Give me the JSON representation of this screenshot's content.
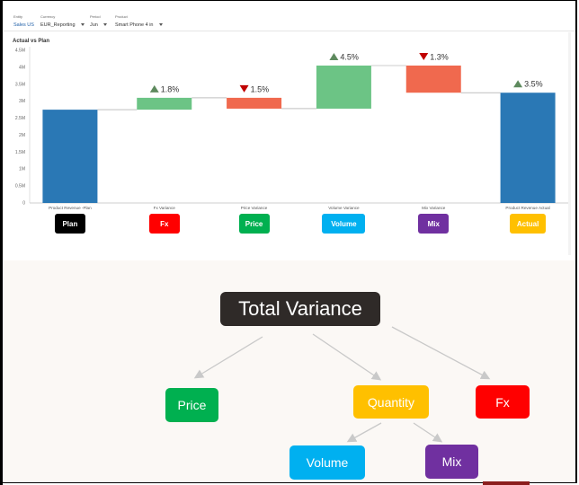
{
  "filters": [
    {
      "label": "Entity",
      "value": "Sales US",
      "has_caret": false
    },
    {
      "label": "Currency",
      "value": "EUR_Reporting",
      "has_caret": true
    },
    {
      "label": "Period",
      "value": "Jun",
      "has_caret": true
    },
    {
      "label": "Product",
      "value": "Smart Phone 4 in",
      "has_caret": true
    }
  ],
  "chart": {
    "title": "Actual vs Plan"
  },
  "chart_data": {
    "type": "waterfall",
    "title": "Actual vs Plan",
    "y_ticks": [
      "0",
      "0.5M",
      "1M",
      "1.5M",
      "2M",
      "2.5M",
      "3M",
      "3.5M",
      "4M",
      "4.5M"
    ],
    "ylim": [
      0,
      4500000
    ],
    "categories": [
      "Product Revenue -Plan",
      "Fx Variance",
      "Price Variance",
      "Volume Variance",
      "Mix Variance",
      "Product Revenue Actual"
    ],
    "bars": [
      {
        "kind": "total",
        "start": 0,
        "end": 2750000,
        "color": "#2a78b5",
        "pct": ""
      },
      {
        "kind": "up",
        "start": 2750000,
        "end": 3100000,
        "color": "#6cc485",
        "pct": "1.8%"
      },
      {
        "kind": "down",
        "start": 3100000,
        "end": 2780000,
        "color": "#f0694e",
        "pct": "1.5%"
      },
      {
        "kind": "up",
        "start": 2780000,
        "end": 4050000,
        "color": "#6cc485",
        "pct": "4.5%"
      },
      {
        "kind": "down",
        "start": 4050000,
        "end": 3250000,
        "color": "#f0694e",
        "pct": "1.3%"
      },
      {
        "kind": "total",
        "start": 0,
        "end": 3250000,
        "color": "#2a78b5",
        "pct": "3.5%",
        "pct_dir": "up"
      }
    ],
    "legend_tags": [
      {
        "label": "Plan",
        "color": "#000000"
      },
      {
        "label": "Fx",
        "color": "#ff0000"
      },
      {
        "label": "Price",
        "color": "#00b050"
      },
      {
        "label": "Volume",
        "color": "#00b0f0"
      },
      {
        "label": "Mix",
        "color": "#7030a0"
      },
      {
        "label": "Actual",
        "color": "#ffc000"
      }
    ]
  },
  "tree": {
    "total": "Total Variance",
    "price": "Price",
    "quantity": "Quantity",
    "fx": "Fx",
    "volume": "Volume",
    "mix": "Mix",
    "colors": {
      "total": "#2f2a28",
      "price": "#00b050",
      "quantity": "#ffc000",
      "fx": "#ff0000",
      "volume": "#00b0f0",
      "mix": "#7030a0"
    }
  }
}
